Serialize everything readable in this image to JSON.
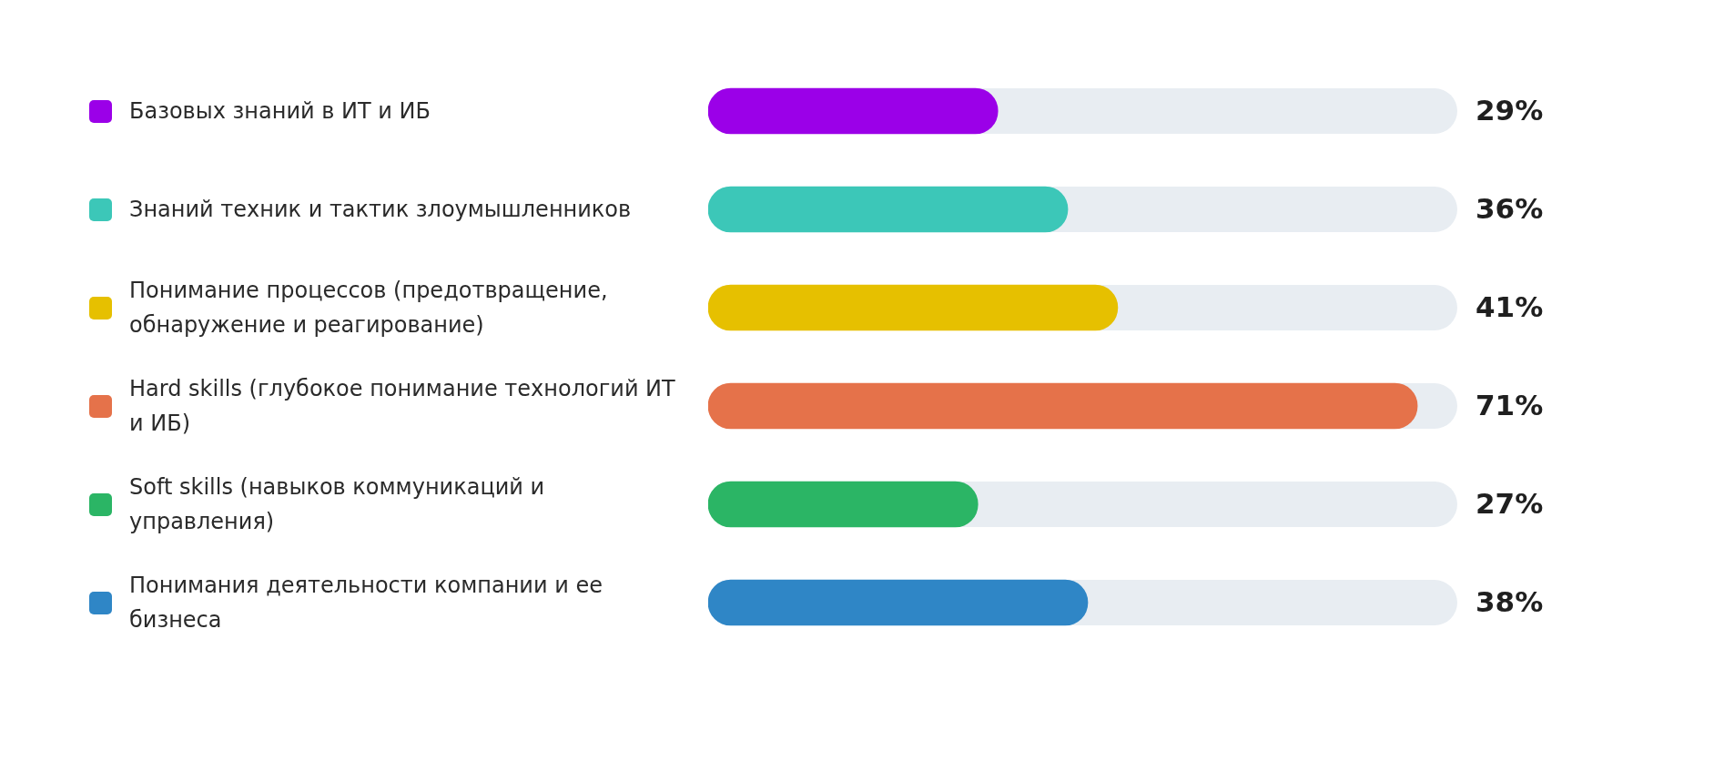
{
  "chart_data": {
    "type": "bar",
    "orientation": "horizontal",
    "categories": [
      "Базовых знаний в ИТ и ИБ",
      "Знаний техник и тактик злоумышленников",
      "Понимание процессов (предотвращение, обнаружение и реагирование)",
      "Hard skills (глубокое понимание технологий ИТ и ИБ)",
      "Soft skills (навыков коммуникаций и управления)",
      "Понимания деятельности компании и ее бизнеса"
    ],
    "values": [
      29,
      36,
      41,
      71,
      27,
      38
    ],
    "colors": [
      "#9b00e8",
      "#3cc7b8",
      "#e6c000",
      "#e5724a",
      "#2bb565",
      "#2f86c6"
    ],
    "value_labels": [
      "29%",
      "36%",
      "41%",
      "71%",
      "27%",
      "38%"
    ],
    "xlim": [
      0,
      75
    ],
    "tick_labels": false,
    "grid": false
  }
}
